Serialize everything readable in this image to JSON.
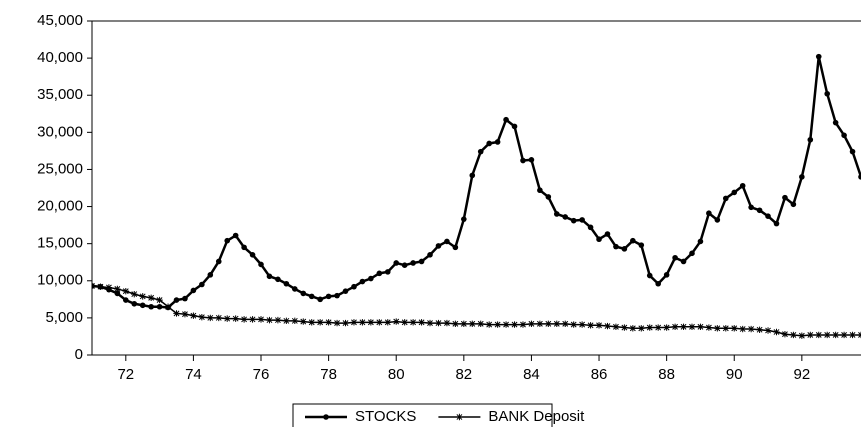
{
  "chart_data": {
    "type": "line",
    "x": [
      71,
      71.25,
      71.5,
      71.75,
      72,
      72.25,
      72.5,
      72.75,
      73,
      73.25,
      73.5,
      73.75,
      74,
      74.25,
      74.5,
      74.75,
      75,
      75.25,
      75.5,
      75.75,
      76,
      76.25,
      76.5,
      76.75,
      77,
      77.25,
      77.5,
      77.75,
      78,
      78.25,
      78.5,
      78.75,
      79,
      79.25,
      79.5,
      79.75,
      80,
      80.25,
      80.5,
      80.75,
      81,
      81.25,
      81.5,
      81.75,
      82,
      82.25,
      82.5,
      82.75,
      83,
      83.25,
      83.5,
      83.75,
      84,
      84.25,
      84.5,
      84.75,
      85,
      85.25,
      85.5,
      85.75,
      86,
      86.25,
      86.5,
      86.75,
      87,
      87.25,
      87.5,
      87.75,
      88,
      88.25,
      88.5,
      88.75,
      89,
      89.25,
      89.5,
      89.75,
      90,
      90.25,
      90.5,
      90.75,
      91,
      91.25,
      91.5,
      91.75,
      92,
      92.25,
      92.5,
      92.75,
      93,
      93.25,
      93.5,
      93.75
    ],
    "series": [
      {
        "name": "STOCKS",
        "color": "#000000",
        "marker": "circle",
        "values": [
          9300,
          9200,
          8800,
          8300,
          7400,
          6900,
          6700,
          6500,
          6500,
          6400,
          7400,
          7600,
          8700,
          9500,
          10800,
          12600,
          15400,
          16100,
          14500,
          13500,
          12200,
          10600,
          10200,
          9600,
          8900,
          8300,
          7900,
          7500,
          7900,
          8000,
          8600,
          9200,
          9900,
          10300,
          11000,
          11200,
          12400,
          12100,
          12400,
          12600,
          13500,
          14700,
          15300,
          14500,
          18300,
          24200,
          27400,
          28500,
          28700,
          31700,
          30800,
          26200,
          26300,
          22200,
          21300,
          19000,
          18600,
          18100,
          18200,
          17200,
          15600,
          16300,
          14600,
          14300,
          15400,
          14800,
          10700,
          9600,
          10800,
          13100,
          12600,
          13700,
          15300,
          19100,
          18200,
          21100,
          21900,
          22800,
          19900,
          19500,
          18700,
          17700,
          21200,
          20300,
          24000,
          29000,
          40200,
          35200,
          31300,
          29600,
          27400,
          24000
        ]
      },
      {
        "name": "BANK Deposit",
        "color": "#000000",
        "marker": "star",
        "values": [
          9300,
          9200,
          9100,
          8900,
          8600,
          8200,
          7900,
          7700,
          7400,
          6500,
          5600,
          5500,
          5300,
          5100,
          5000,
          5000,
          4900,
          4900,
          4800,
          4800,
          4800,
          4700,
          4700,
          4600,
          4600,
          4500,
          4400,
          4400,
          4400,
          4300,
          4300,
          4400,
          4400,
          4400,
          4400,
          4400,
          4500,
          4400,
          4400,
          4400,
          4300,
          4300,
          4300,
          4200,
          4200,
          4200,
          4200,
          4100,
          4100,
          4100,
          4100,
          4100,
          4200,
          4200,
          4200,
          4200,
          4200,
          4100,
          4100,
          4000,
          4000,
          3900,
          3800,
          3700,
          3600,
          3600,
          3700,
          3700,
          3700,
          3800,
          3800,
          3800,
          3800,
          3700,
          3600,
          3600,
          3600,
          3500,
          3500,
          3400,
          3300,
          3100,
          2800,
          2700,
          2600,
          2700,
          2700,
          2700,
          2700,
          2700,
          2700,
          2700
        ]
      }
    ],
    "xlim": [
      71,
      93.75
    ],
    "xticks": [
      72,
      74,
      76,
      78,
      80,
      82,
      84,
      86,
      88,
      90,
      92
    ],
    "ylim": [
      0,
      45000
    ],
    "yticks": [
      0,
      {
        "value": 5000,
        "label": "5,000"
      },
      {
        "value": 10000,
        "label": "10,000"
      },
      {
        "value": 15000,
        "label": "15,000"
      },
      {
        "value": 20000,
        "label": "20,000"
      },
      {
        "value": 25000,
        "label": "25,000"
      },
      {
        "value": 30000,
        "label": "30,000"
      },
      {
        "value": 35000,
        "label": "35,000"
      },
      {
        "value": 40000,
        "label": "40,000"
      },
      {
        "value": 45000,
        "label": "45,000"
      }
    ],
    "legend": "bottom"
  }
}
